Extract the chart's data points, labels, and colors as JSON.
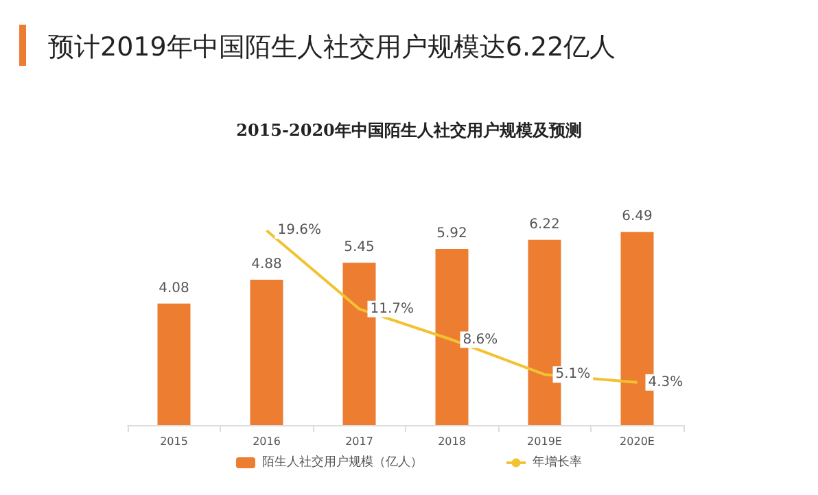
{
  "chart_data": {
    "type": "bar",
    "title": "预计2019年中国陌生人社交用户规模达6.22亿人",
    "subtitle": "2015-2020年中国陌生人社交用户规模及预测",
    "categories": [
      "2015",
      "2016",
      "2017",
      "2018",
      "2019E",
      "2020E"
    ],
    "series": [
      {
        "name": "陌生人社交用户规模（亿人）",
        "color": "#ed7d31",
        "values": [
          4.08,
          4.88,
          5.45,
          5.92,
          6.22,
          6.49
        ]
      },
      {
        "name": "年增长率",
        "type": "line",
        "axis": "y2",
        "color": "#f2c232",
        "values": [
          null,
          19.6,
          11.7,
          8.6,
          5.1,
          4.3
        ],
        "value_labels": [
          null,
          "19.6%",
          "11.7%",
          "8.6%",
          "5.1%",
          "4.3%"
        ]
      }
    ],
    "data_labels": true,
    "legend": "bottom",
    "grid": false,
    "marker": "none",
    "tick_labels": "x"
  }
}
